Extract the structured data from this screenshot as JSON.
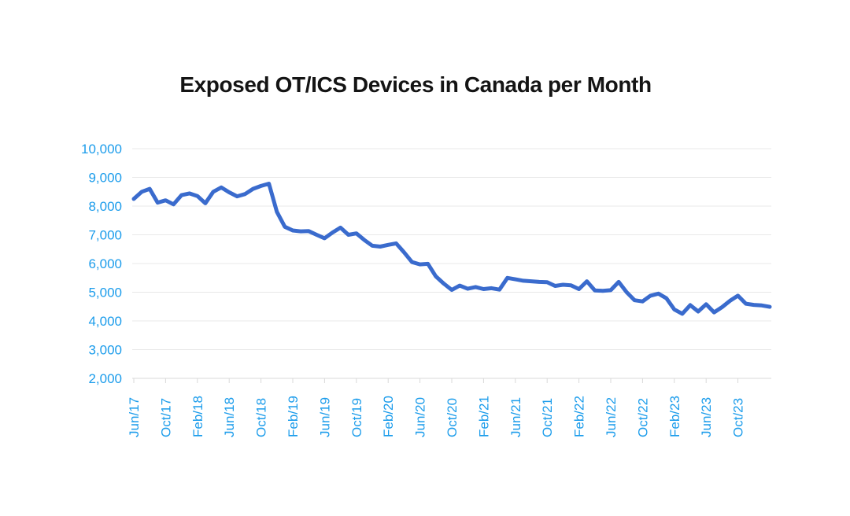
{
  "chart": {
    "title": "Exposed OT/ICS Devices in Canada per Month"
  },
  "chart_data": {
    "type": "line",
    "title": "Exposed OT/ICS Devices in Canada per Month",
    "xlabel": "",
    "ylabel": "",
    "legend": "none",
    "grid": "horizontal",
    "ylim": [
      2000,
      10000
    ],
    "y_ticks": [
      10000,
      9000,
      8000,
      7000,
      6000,
      5000,
      4000,
      3000,
      2000
    ],
    "y_tick_labels": [
      "10,000",
      "9,000",
      "8,000",
      "7,000",
      "6,000",
      "5,000",
      "4,000",
      "3,000",
      "2,000"
    ],
    "x_tick_labels": [
      "Jun/17",
      "Oct/17",
      "Feb/18",
      "Jun/18",
      "Oct/18",
      "Feb/19",
      "Jun/19",
      "Oct/19",
      "Feb/20",
      "Jun/20",
      "Oct/20",
      "Feb/21",
      "Jun/21",
      "Oct/21",
      "Feb/22",
      "Jun/22",
      "Oct/22",
      "Feb/23",
      "Jun/23",
      "Oct/23"
    ],
    "x": [
      "Jun/17",
      "Jul/17",
      "Aug/17",
      "Sep/17",
      "Oct/17",
      "Nov/17",
      "Dec/17",
      "Jan/18",
      "Feb/18",
      "Mar/18",
      "Apr/18",
      "May/18",
      "Jun/18",
      "Jul/18",
      "Aug/18",
      "Sep/18",
      "Oct/18",
      "Nov/18",
      "Dec/18",
      "Jan/19",
      "Feb/19",
      "Mar/19",
      "Apr/19",
      "May/19",
      "Jun/19",
      "Jul/19",
      "Aug/19",
      "Sep/19",
      "Oct/19",
      "Nov/19",
      "Dec/19",
      "Jan/20",
      "Feb/20",
      "Mar/20",
      "Apr/20",
      "May/20",
      "Jun/20",
      "Jul/20",
      "Aug/20",
      "Sep/20",
      "Oct/20",
      "Nov/20",
      "Dec/20",
      "Jan/21",
      "Feb/21",
      "Mar/21",
      "Apr/21",
      "May/21",
      "Jun/21",
      "Jul/21",
      "Aug/21",
      "Sep/21",
      "Oct/21",
      "Nov/21",
      "Dec/21",
      "Jan/22",
      "Feb/22",
      "Mar/22",
      "Apr/22",
      "May/22",
      "Jun/22",
      "Jul/22",
      "Aug/22",
      "Sep/22",
      "Oct/22",
      "Nov/22",
      "Dec/22",
      "Jan/23",
      "Feb/23",
      "Mar/23",
      "Apr/23",
      "May/23",
      "Jun/23",
      "Jul/23",
      "Aug/23",
      "Sep/23",
      "Oct/23",
      "Nov/23",
      "Dec/23",
      "Jan/24",
      "Feb/24"
    ],
    "values": [
      8250,
      8500,
      8600,
      8120,
      8200,
      8060,
      8380,
      8440,
      8350,
      8100,
      8500,
      8650,
      8480,
      8340,
      8420,
      8600,
      8700,
      8780,
      7800,
      7280,
      7150,
      7120,
      7130,
      7000,
      6880,
      7080,
      7250,
      7000,
      7050,
      6820,
      6620,
      6590,
      6650,
      6700,
      6390,
      6050,
      5970,
      5990,
      5550,
      5300,
      5080,
      5230,
      5120,
      5180,
      5110,
      5140,
      5090,
      5500,
      5450,
      5400,
      5380,
      5360,
      5350,
      5220,
      5260,
      5240,
      5110,
      5380,
      5060,
      5050,
      5070,
      5360,
      5000,
      4720,
      4680,
      4880,
      4950,
      4790,
      4400,
      4250,
      4550,
      4330,
      4580,
      4300,
      4480,
      4700,
      4880,
      4600,
      4560,
      4540,
      4490
    ],
    "line_color": "#3A6BCD",
    "axis_label_color": "#1B9CEB",
    "gridline_color": "#E8E8E8",
    "axis_line_color": "#D9D9D9",
    "title_color": "#141414",
    "background": "#FFFFFF"
  }
}
